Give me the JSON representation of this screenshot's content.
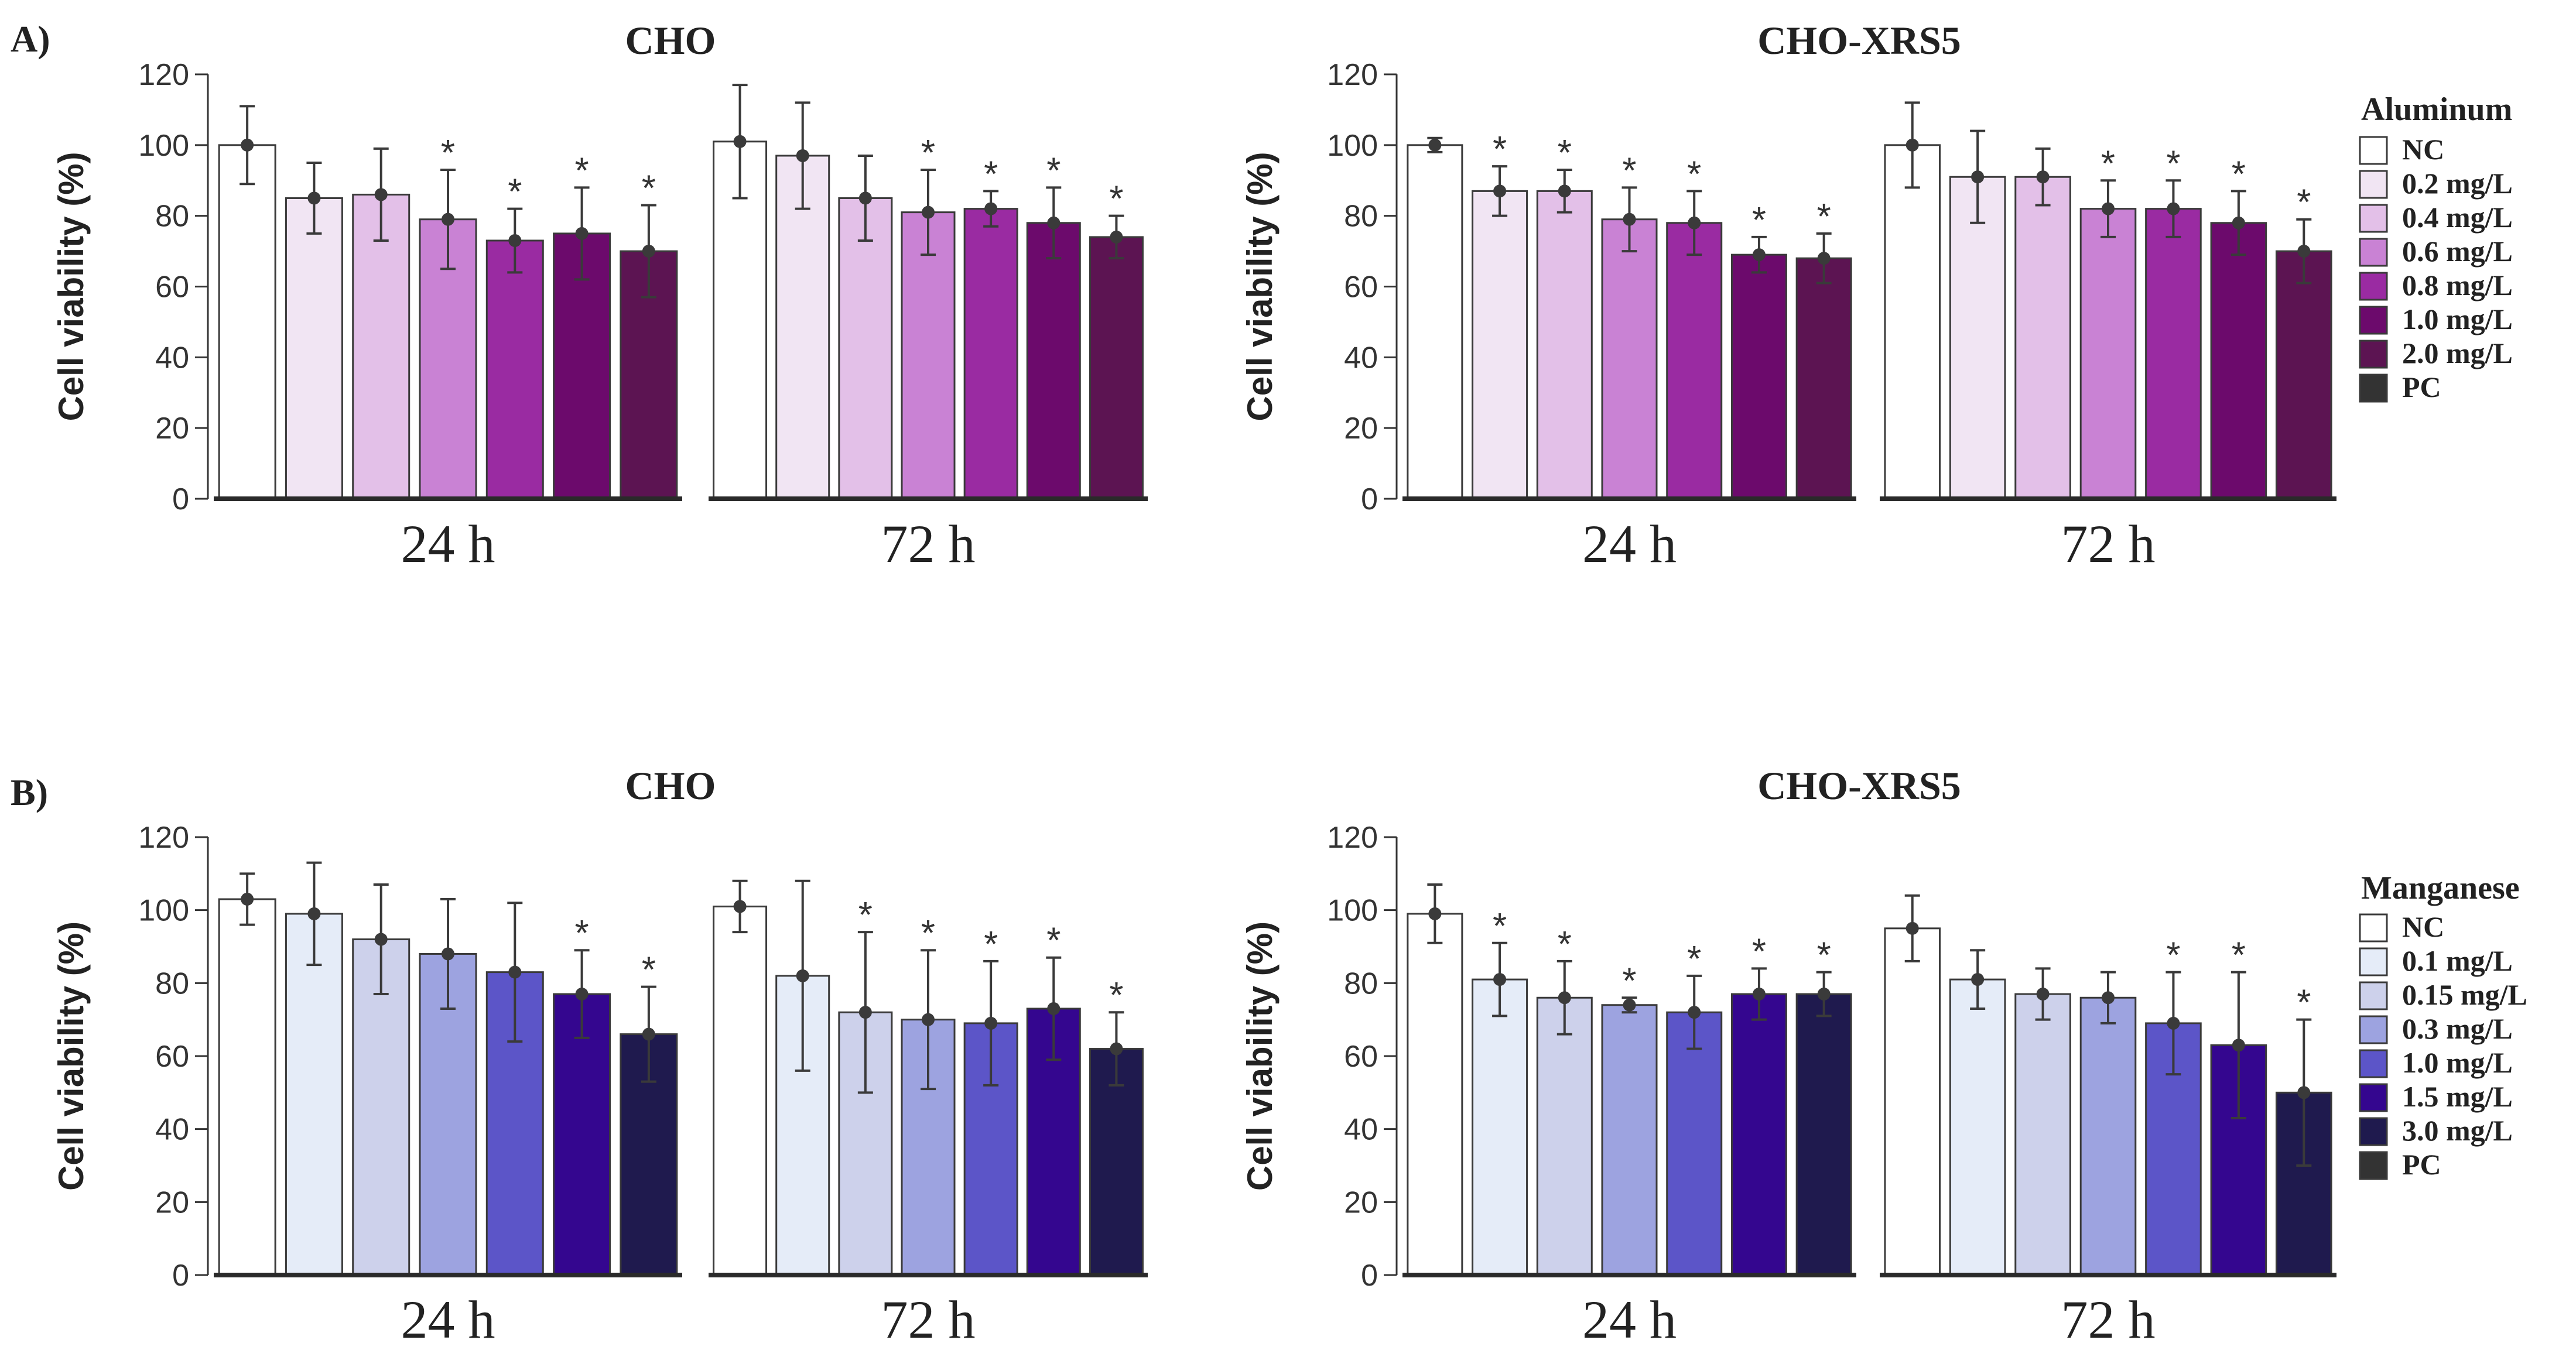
{
  "panels": [
    {
      "label": "A)"
    },
    {
      "label": "B)"
    }
  ],
  "legends": [
    {
      "title": "Aluminum",
      "items": [
        {
          "label": "NC",
          "color": "#ffffff"
        },
        {
          "label": "0.2 mg/L",
          "color": "#f1e5f3"
        },
        {
          "label": "0.4 mg/L",
          "color": "#e3c0e8"
        },
        {
          "label": "0.6 mg/L",
          "color": "#c982d4"
        },
        {
          "label": "0.8 mg/L",
          "color": "#9a2ba2"
        },
        {
          "label": "1.0 mg/L",
          "color": "#6c0a6c"
        },
        {
          "label": "2.0 mg/L",
          "color": "#5c1452"
        },
        {
          "label": "PC",
          "color": "#333333"
        }
      ]
    },
    {
      "title": "Manganese",
      "items": [
        {
          "label": "NC",
          "color": "#ffffff"
        },
        {
          "label": "0.1 mg/L",
          "color": "#e5ecf8"
        },
        {
          "label": "0.15 mg/L",
          "color": "#cdd1eb"
        },
        {
          "label": "0.3 mg/L",
          "color": "#9da3e0"
        },
        {
          "label": "1.0 mg/L",
          "color": "#5c55c8"
        },
        {
          "label": "1.5 mg/L",
          "color": "#34068f"
        },
        {
          "label": "3.0 mg/L",
          "color": "#1f1a4e"
        },
        {
          "label": "PC",
          "color": "#333333"
        }
      ]
    }
  ],
  "chart_data": [
    {
      "type": "bar",
      "panel": "A)",
      "title": "CHO",
      "ylabel": "Cell viability  (%)",
      "ylim": [
        0,
        120
      ],
      "yticks": [
        0,
        20,
        40,
        60,
        80,
        100,
        120
      ],
      "legend": 0,
      "groups": [
        {
          "name": "24 h",
          "values": [
            100,
            85,
            86,
            79,
            73,
            75,
            70
          ],
          "errors": [
            11,
            10,
            13,
            14,
            9,
            13,
            13
          ],
          "sig": [
            false,
            false,
            false,
            true,
            true,
            true,
            true
          ]
        },
        {
          "name": "72 h",
          "values": [
            101,
            97,
            85,
            81,
            82,
            78,
            74
          ],
          "errors": [
            16,
            15,
            12,
            12,
            5,
            10,
            6
          ],
          "sig": [
            false,
            false,
            false,
            true,
            true,
            true,
            true
          ]
        }
      ]
    },
    {
      "type": "bar",
      "panel": "A)",
      "title": "CHO-XRS5",
      "ylabel": "Cell viability  (%)",
      "ylim": [
        0,
        120
      ],
      "yticks": [
        0,
        20,
        40,
        60,
        80,
        100,
        120
      ],
      "legend": 0,
      "groups": [
        {
          "name": "24 h",
          "values": [
            100,
            87,
            87,
            79,
            78,
            69,
            68
          ],
          "errors": [
            2,
            7,
            6,
            9,
            9,
            5,
            7
          ],
          "sig": [
            false,
            true,
            true,
            true,
            true,
            true,
            true
          ]
        },
        {
          "name": "72 h",
          "values": [
            100,
            91,
            91,
            82,
            82,
            78,
            70
          ],
          "errors": [
            12,
            13,
            8,
            8,
            8,
            9,
            9
          ],
          "sig": [
            false,
            false,
            false,
            true,
            true,
            true,
            true
          ]
        }
      ]
    },
    {
      "type": "bar",
      "panel": "B)",
      "title": "CHO",
      "ylabel": "Cell viability  (%)",
      "ylim": [
        0,
        120
      ],
      "yticks": [
        0,
        20,
        40,
        60,
        80,
        100,
        120
      ],
      "legend": 1,
      "groups": [
        {
          "name": "24 h",
          "values": [
            103,
            99,
            92,
            88,
            83,
            77,
            66
          ],
          "errors": [
            7,
            14,
            15,
            15,
            19,
            12,
            13
          ],
          "sig": [
            false,
            false,
            false,
            false,
            false,
            true,
            true
          ]
        },
        {
          "name": "72 h",
          "values": [
            101,
            82,
            72,
            70,
            69,
            73,
            62
          ],
          "errors": [
            7,
            26,
            22,
            19,
            17,
            14,
            10
          ],
          "sig": [
            false,
            false,
            true,
            true,
            true,
            true,
            true
          ]
        }
      ]
    },
    {
      "type": "bar",
      "panel": "B)",
      "title": "CHO-XRS5",
      "ylabel": "Cell viability  (%)",
      "ylim": [
        0,
        120
      ],
      "yticks": [
        0,
        20,
        40,
        60,
        80,
        100,
        120
      ],
      "legend": 1,
      "groups": [
        {
          "name": "24 h",
          "values": [
            99,
            81,
            76,
            74,
            72,
            77,
            77
          ],
          "errors": [
            8,
            10,
            10,
            2,
            10,
            7,
            6
          ],
          "sig": [
            false,
            true,
            true,
            true,
            true,
            true,
            true
          ]
        },
        {
          "name": "72 h",
          "values": [
            95,
            81,
            77,
            76,
            69,
            63,
            50
          ],
          "errors": [
            9,
            8,
            7,
            7,
            14,
            20,
            20
          ],
          "sig": [
            false,
            false,
            false,
            false,
            true,
            true,
            true
          ]
        }
      ]
    }
  ]
}
